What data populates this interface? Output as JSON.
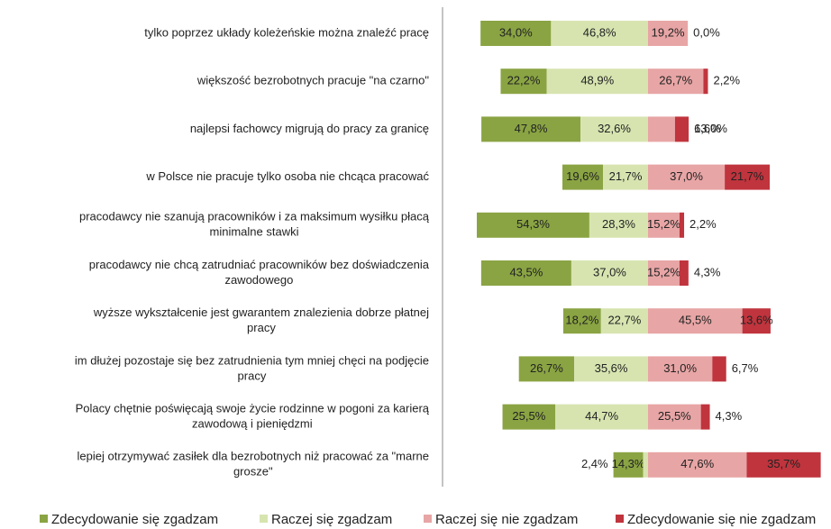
{
  "chart_data": {
    "type": "diverging-stacked-bar",
    "categories": [
      [
        "tylko poprzez układy koleżeńskie można znaleźć pracę"
      ],
      [
        "większość bezrobotnych pracuje \"na czarno\""
      ],
      [
        "najlepsi fachowcy migrują do pracy za granicę"
      ],
      [
        "w Polsce nie pracuje tylko osoba nie chcąca pracować"
      ],
      [
        "pracodawcy nie szanują pracowników i za maksimum wysiłku płacą",
        "minimalne stawki"
      ],
      [
        "pracodawcy nie chcą zatrudniać pracowników bez doświadczenia",
        "zawodowego"
      ],
      [
        "wyższe wykształcenie jest gwarantem znalezienia dobrze płatnej",
        "pracy"
      ],
      [
        "im dłużej pozostaje się bez zatrudnienia tym mniej chęci na podjęcie",
        "pracy"
      ],
      [
        "Polacy chętnie poświęcają swoje życie rodzinne w pogoni za karierą",
        "zawodową i pieniędzmi"
      ],
      [
        "lepiej otrzymywać zasiłek dla bezrobotnych niż pracować za \"marne",
        "grosze\""
      ]
    ],
    "series": [
      {
        "name": "Zdecydowanie się zgadzam",
        "color": "#8aa443",
        "values": [
          34.0,
          22.2,
          47.8,
          19.6,
          54.3,
          43.5,
          18.2,
          26.7,
          25.5,
          14.3
        ],
        "value_labels": [
          "34,0%",
          "22,2%",
          "47,8%",
          "19,6%",
          "54,3%",
          "43,5%",
          "18,2%",
          "26,7%",
          "25,5%",
          "14,3%"
        ]
      },
      {
        "name": "Raczej się zgadzam",
        "color": "#d7e4b0",
        "values": [
          46.8,
          48.9,
          32.6,
          21.7,
          28.3,
          37.0,
          22.7,
          35.6,
          44.7,
          2.4
        ],
        "value_labels": [
          "46,8%",
          "48,9%",
          "32,6%",
          "21,7%",
          "28,3%",
          "37,0%",
          "22,7%",
          "35,6%",
          "44,7%",
          "2,4%"
        ]
      },
      {
        "name": "Raczej się nie zgadzam",
        "color": "#e8a5a5",
        "values": [
          19.2,
          26.7,
          13.0,
          37.0,
          15.2,
          15.2,
          45.5,
          31.0,
          25.5,
          47.6
        ],
        "value_labels": [
          "19,2%",
          "26,7%",
          "13,0%",
          "37,0%",
          "15,2%",
          "15,2%",
          "45,5%",
          "31,0%",
          "25,5%",
          "47,6%"
        ]
      },
      {
        "name": "Zdecydowanie się nie zgadzam",
        "color": "#c0343d",
        "values": [
          0.0,
          2.2,
          6.6,
          21.7,
          2.2,
          4.3,
          13.6,
          6.7,
          4.3,
          35.7
        ],
        "value_labels": [
          "0,0%",
          "2,2%",
          "6,6%",
          "21,7%",
          "2,2%",
          "4,3%",
          "13,6%",
          "6,7%",
          "4,3%",
          "35,7%"
        ]
      }
    ]
  }
}
